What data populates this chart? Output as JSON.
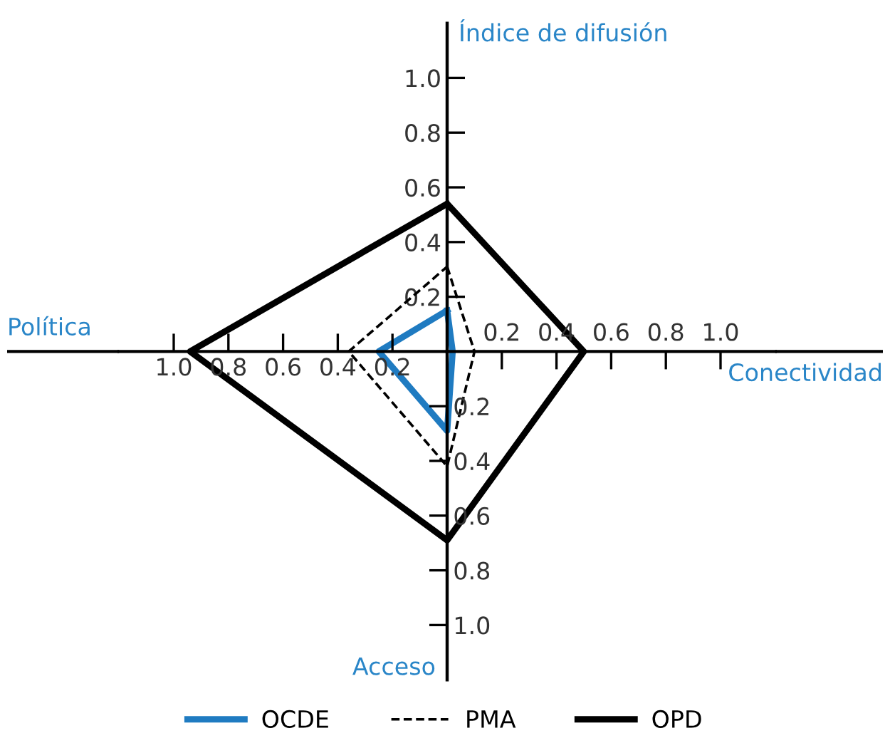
{
  "chart_data": {
    "type": "radar",
    "categories": [
      "Índice de difusión",
      "Conectividad",
      "Acceso",
      "Política"
    ],
    "series": [
      {
        "name": "OCDE",
        "color": "#1f7bc1",
        "line_style": "solid",
        "values": [
          0.15,
          0.02,
          0.29,
          0.25
        ]
      },
      {
        "name": "PMA",
        "color": "#000000",
        "line_style": "dashed",
        "values": [
          0.31,
          0.1,
          0.42,
          0.36
        ]
      },
      {
        "name": "OPD",
        "color": "#000000",
        "line_style": "solid",
        "values": [
          0.54,
          0.5,
          0.69,
          0.94
        ]
      }
    ],
    "ylim": [
      0,
      1.2
    ],
    "yticks": [
      {
        "value": 0.2,
        "label": "0.2"
      },
      {
        "value": 0.4,
        "label": "0.4"
      },
      {
        "value": 0.6,
        "label": "0.6"
      },
      {
        "value": 0.8,
        "label": "0.8"
      },
      {
        "value": 1.0,
        "label": "1.0"
      }
    ],
    "legend": "bottom"
  }
}
